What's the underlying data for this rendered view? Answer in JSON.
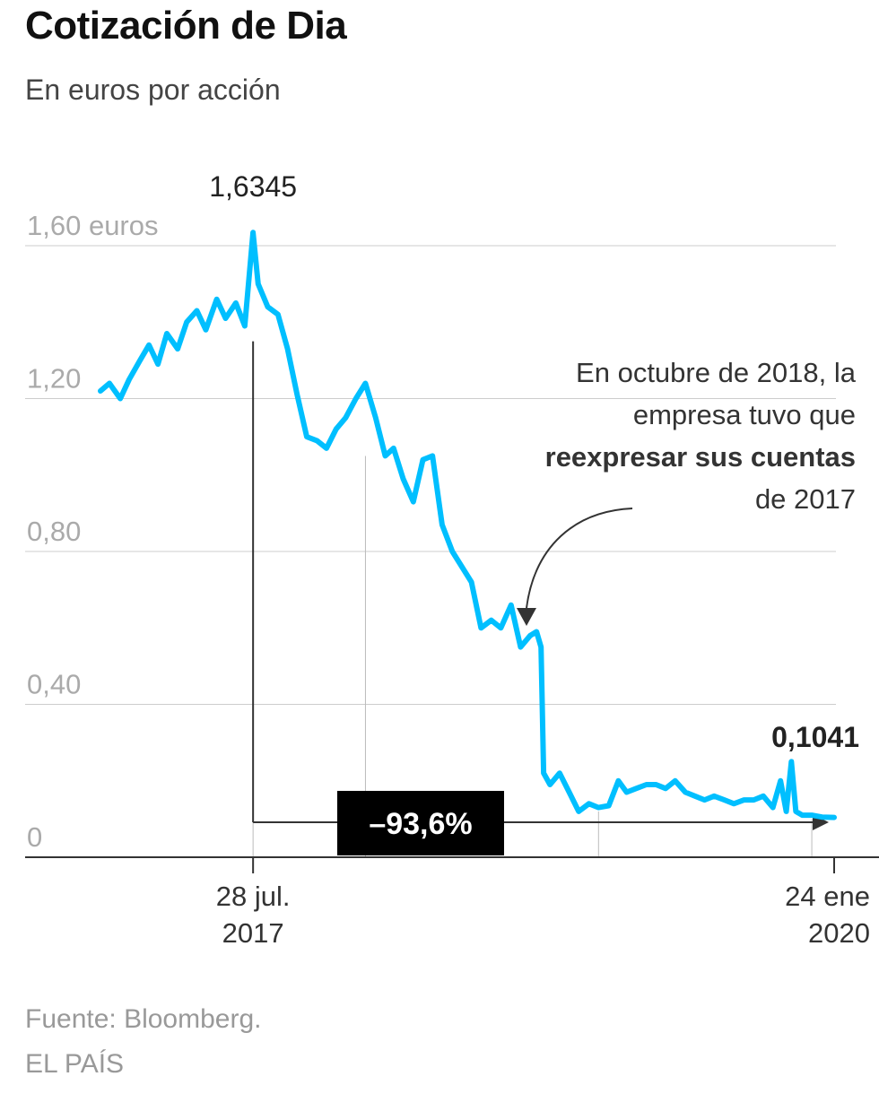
{
  "header": {
    "title": "Cotización de Dia",
    "subtitle": "En euros por acción"
  },
  "annotation": {
    "lead": "En octubre de 2018, la empresa tuvo que",
    "bold": "reexpresar sus cuentas",
    "tail": "de 2017"
  },
  "footer": {
    "source": "Fuente: Bloomberg.",
    "credit": "EL PAÍS"
  },
  "colors": {
    "line": "#00bfff",
    "grid": "#cccccc",
    "axis": "#333333",
    "badge_bg": "#000000",
    "badge_text": "#ffffff"
  },
  "chart_data": {
    "type": "line",
    "ylim": [
      0,
      1.6
    ],
    "y_ticks": [
      {
        "value": 1.6,
        "label": "1,60 euros"
      },
      {
        "value": 1.2,
        "label": "1,20"
      },
      {
        "value": 0.8,
        "label": "0,80"
      },
      {
        "value": 0.4,
        "label": "0,40"
      },
      {
        "value": 0,
        "label": "0"
      }
    ],
    "x_labels": [
      {
        "date": "2017-07-28",
        "line1": "28 jul.",
        "line2": "2017"
      },
      {
        "date": "2020-01-24",
        "line1": "24 ene",
        "line2": "2020"
      }
    ],
    "series": [
      {
        "values": [
          [
            "2016-12-01",
            1.22
          ],
          [
            "2016-12-15",
            1.24
          ],
          [
            "2017-01-01",
            1.2
          ],
          [
            "2017-01-15",
            1.25
          ],
          [
            "2017-02-01",
            1.3
          ],
          [
            "2017-02-15",
            1.34
          ],
          [
            "2017-03-01",
            1.29
          ],
          [
            "2017-03-15",
            1.37
          ],
          [
            "2017-04-01",
            1.33
          ],
          [
            "2017-04-15",
            1.4
          ],
          [
            "2017-05-01",
            1.43
          ],
          [
            "2017-05-15",
            1.38
          ],
          [
            "2017-06-01",
            1.46
          ],
          [
            "2017-06-15",
            1.41
          ],
          [
            "2017-07-01",
            1.45
          ],
          [
            "2017-07-15",
            1.39
          ],
          [
            "2017-07-28",
            1.6345
          ],
          [
            "2017-08-05",
            1.5
          ],
          [
            "2017-08-20",
            1.44
          ],
          [
            "2017-09-05",
            1.42
          ],
          [
            "2017-09-20",
            1.33
          ],
          [
            "2017-10-05",
            1.21
          ],
          [
            "2017-10-20",
            1.1
          ],
          [
            "2017-11-05",
            1.09
          ],
          [
            "2017-11-20",
            1.07
          ],
          [
            "2017-12-05",
            1.12
          ],
          [
            "2017-12-20",
            1.15
          ],
          [
            "2018-01-05",
            1.2
          ],
          [
            "2018-01-20",
            1.24
          ],
          [
            "2018-02-05",
            1.15
          ],
          [
            "2018-02-20",
            1.05
          ],
          [
            "2018-03-05",
            1.07
          ],
          [
            "2018-03-20",
            0.99
          ],
          [
            "2018-04-05",
            0.93
          ],
          [
            "2018-04-20",
            1.04
          ],
          [
            "2018-05-05",
            1.05
          ],
          [
            "2018-05-20",
            0.87
          ],
          [
            "2018-06-05",
            0.8
          ],
          [
            "2018-06-20",
            0.76
          ],
          [
            "2018-07-05",
            0.72
          ],
          [
            "2018-07-20",
            0.6
          ],
          [
            "2018-08-05",
            0.62
          ],
          [
            "2018-08-20",
            0.6
          ],
          [
            "2018-09-05",
            0.66
          ],
          [
            "2018-09-20",
            0.55
          ],
          [
            "2018-10-05",
            0.58
          ],
          [
            "2018-10-15",
            0.59
          ],
          [
            "2018-10-22",
            0.55
          ],
          [
            "2018-10-26",
            0.22
          ],
          [
            "2018-11-05",
            0.19
          ],
          [
            "2018-11-20",
            0.22
          ],
          [
            "2018-12-05",
            0.17
          ],
          [
            "2018-12-20",
            0.12
          ],
          [
            "2019-01-05",
            0.14
          ],
          [
            "2019-01-20",
            0.13
          ],
          [
            "2019-02-05",
            0.135
          ],
          [
            "2019-02-20",
            0.2
          ],
          [
            "2019-03-05",
            0.17
          ],
          [
            "2019-03-20",
            0.18
          ],
          [
            "2019-04-05",
            0.19
          ],
          [
            "2019-04-20",
            0.19
          ],
          [
            "2019-05-05",
            0.18
          ],
          [
            "2019-05-20",
            0.2
          ],
          [
            "2019-06-05",
            0.17
          ],
          [
            "2019-06-20",
            0.16
          ],
          [
            "2019-07-05",
            0.15
          ],
          [
            "2019-07-20",
            0.16
          ],
          [
            "2019-08-05",
            0.15
          ],
          [
            "2019-08-20",
            0.14
          ],
          [
            "2019-09-05",
            0.15
          ],
          [
            "2019-09-20",
            0.15
          ],
          [
            "2019-10-05",
            0.16
          ],
          [
            "2019-10-20",
            0.13
          ],
          [
            "2019-11-01",
            0.2
          ],
          [
            "2019-11-10",
            0.12
          ],
          [
            "2019-11-18",
            0.25
          ],
          [
            "2019-11-25",
            0.12
          ],
          [
            "2019-12-05",
            0.11
          ],
          [
            "2019-12-20",
            0.11
          ],
          [
            "2020-01-05",
            0.105
          ],
          [
            "2020-01-24",
            0.1041
          ]
        ]
      }
    ],
    "annotations": {
      "peak_label": "1,6345",
      "last_label": "0,1041",
      "change_label": "–93,6%"
    }
  }
}
